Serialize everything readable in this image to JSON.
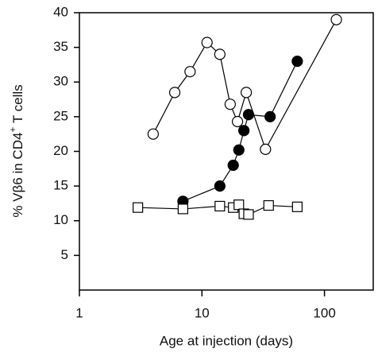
{
  "chart_data": {
    "type": "line",
    "xlabel": "Age at injection (days)",
    "ylabel": [
      "% Vβ6 in CD4",
      "+",
      " T cells"
    ],
    "xscale": "log",
    "xlim": [
      1,
      250
    ],
    "xticks": [
      1,
      10,
      100
    ],
    "ylim": [
      0,
      40
    ],
    "yticks": [
      5,
      10,
      15,
      20,
      25,
      30,
      35,
      40
    ],
    "frame": true,
    "series": [
      {
        "marker": "circle",
        "color": "#000000",
        "fill": "#ffffff",
        "x": [
          4,
          6,
          8,
          11,
          14,
          17,
          19.5,
          23,
          33,
          125
        ],
        "values": [
          22.5,
          28.5,
          31.5,
          35.7,
          34,
          26.8,
          24.3,
          28.5,
          20.3,
          39
        ]
      },
      {
        "marker": "circle",
        "color": "#000000",
        "fill": "#000000",
        "x": [
          7,
          14,
          18,
          20,
          22,
          24,
          36,
          60
        ],
        "values": [
          12.8,
          15,
          18,
          20.2,
          23,
          25.3,
          25,
          33
        ]
      },
      {
        "marker": "square",
        "color": "#000000",
        "fill": "#ffffff",
        "x": [
          3,
          7,
          14,
          18,
          20,
          22,
          24,
          35,
          60
        ],
        "values": [
          11.9,
          11.7,
          12.1,
          11.9,
          12.3,
          11,
          10.9,
          12.2,
          12
        ]
      }
    ]
  }
}
